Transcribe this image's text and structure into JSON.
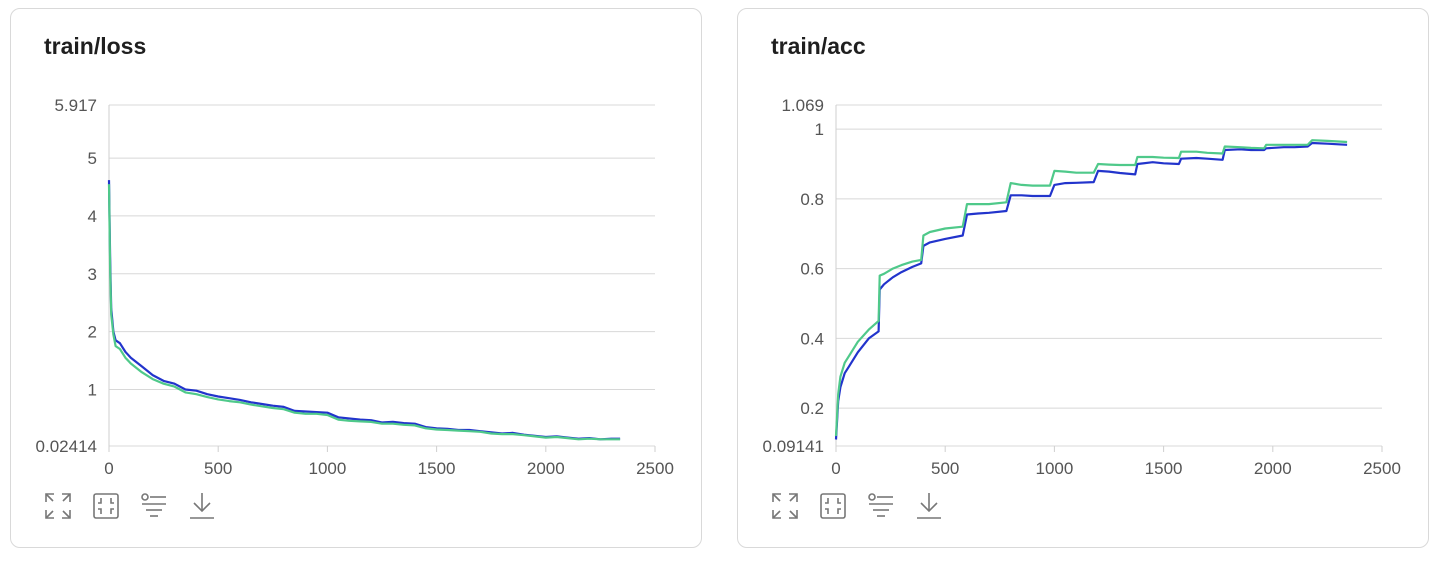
{
  "toolbar": {
    "icons": [
      "expand-icon",
      "fit-icon",
      "filter-icon",
      "download-icon"
    ]
  },
  "colors": {
    "series_blue": "#2234cc",
    "series_green": "#4fc98a",
    "grid": "#d8d8d8"
  },
  "chart_data": [
    {
      "type": "line",
      "title": "train/loss",
      "xlabel": "",
      "ylabel": "",
      "xlim": [
        0,
        2500
      ],
      "ylim": [
        0.02414,
        5.917
      ],
      "x_ticks": [
        0,
        500,
        1000,
        1500,
        2000,
        2500
      ],
      "y_ticks": [
        0.02414,
        1,
        2,
        3,
        4,
        5,
        5.917
      ],
      "y_tick_labels": [
        "0.02414",
        "1",
        "2",
        "3",
        "4",
        "5",
        "5.917"
      ],
      "grid": true,
      "series": [
        {
          "color": "#2234cc",
          "x": [
            0,
            5,
            10,
            20,
            30,
            50,
            75,
            100,
            150,
            200,
            250,
            300,
            350,
            400,
            450,
            500,
            550,
            600,
            650,
            700,
            750,
            800,
            850,
            900,
            950,
            1000,
            1050,
            1100,
            1150,
            1200,
            1250,
            1300,
            1350,
            1400,
            1450,
            1500,
            1550,
            1600,
            1650,
            1700,
            1750,
            1800,
            1850,
            1900,
            1950,
            2000,
            2050,
            2100,
            2150,
            2200,
            2250,
            2300,
            2340
          ],
          "y": [
            4.62,
            3.3,
            2.4,
            2.0,
            1.85,
            1.8,
            1.65,
            1.55,
            1.4,
            1.25,
            1.15,
            1.1,
            1.0,
            0.98,
            0.92,
            0.88,
            0.85,
            0.82,
            0.78,
            0.75,
            0.72,
            0.7,
            0.63,
            0.62,
            0.61,
            0.6,
            0.52,
            0.5,
            0.48,
            0.47,
            0.43,
            0.44,
            0.42,
            0.41,
            0.35,
            0.33,
            0.32,
            0.3,
            0.3,
            0.28,
            0.26,
            0.24,
            0.25,
            0.22,
            0.2,
            0.18,
            0.19,
            0.17,
            0.15,
            0.16,
            0.14,
            0.15,
            0.15
          ]
        },
        {
          "color": "#4fc98a",
          "x": [
            0,
            5,
            10,
            20,
            30,
            50,
            75,
            100,
            150,
            200,
            250,
            300,
            350,
            400,
            450,
            500,
            550,
            600,
            650,
            700,
            750,
            800,
            850,
            900,
            950,
            1000,
            1050,
            1100,
            1150,
            1200,
            1250,
            1300,
            1350,
            1400,
            1450,
            1500,
            1550,
            1600,
            1650,
            1700,
            1750,
            1800,
            1850,
            1900,
            1950,
            2000,
            2050,
            2100,
            2150,
            2200,
            2250,
            2300,
            2340
          ],
          "y": [
            4.55,
            3.1,
            2.3,
            1.95,
            1.75,
            1.7,
            1.55,
            1.45,
            1.3,
            1.18,
            1.1,
            1.05,
            0.95,
            0.92,
            0.87,
            0.83,
            0.8,
            0.78,
            0.74,
            0.71,
            0.68,
            0.66,
            0.6,
            0.58,
            0.58,
            0.56,
            0.48,
            0.46,
            0.45,
            0.44,
            0.41,
            0.41,
            0.39,
            0.38,
            0.33,
            0.31,
            0.3,
            0.29,
            0.28,
            0.27,
            0.24,
            0.23,
            0.23,
            0.21,
            0.19,
            0.17,
            0.18,
            0.16,
            0.14,
            0.15,
            0.14,
            0.14,
            0.14
          ]
        }
      ]
    },
    {
      "type": "line",
      "title": "train/acc",
      "xlabel": "",
      "ylabel": "",
      "xlim": [
        0,
        2500
      ],
      "ylim": [
        0.09141,
        1.069
      ],
      "x_ticks": [
        0,
        500,
        1000,
        1500,
        2000,
        2500
      ],
      "y_ticks": [
        0.09141,
        0.2,
        0.4,
        0.6,
        0.8,
        1,
        1.069
      ],
      "y_tick_labels": [
        "0.09141",
        "0.2",
        "0.4",
        "0.6",
        "0.8",
        "1",
        "1.069"
      ],
      "grid": true,
      "series": [
        {
          "color": "#2234cc",
          "x": [
            0,
            10,
            20,
            40,
            60,
            100,
            150,
            195,
            200,
            220,
            260,
            300,
            350,
            390,
            400,
            430,
            500,
            580,
            600,
            650,
            700,
            780,
            800,
            850,
            900,
            980,
            1000,
            1050,
            1100,
            1180,
            1200,
            1250,
            1300,
            1370,
            1380,
            1450,
            1500,
            1570,
            1580,
            1650,
            1700,
            1770,
            1780,
            1850,
            1900,
            1960,
            1970,
            2050,
            2100,
            2160,
            2180,
            2250,
            2340
          ],
          "y": [
            0.11,
            0.22,
            0.26,
            0.3,
            0.32,
            0.36,
            0.4,
            0.42,
            0.54,
            0.555,
            0.575,
            0.59,
            0.605,
            0.615,
            0.665,
            0.675,
            0.685,
            0.695,
            0.755,
            0.758,
            0.76,
            0.765,
            0.81,
            0.81,
            0.808,
            0.808,
            0.84,
            0.845,
            0.846,
            0.848,
            0.88,
            0.878,
            0.874,
            0.87,
            0.9,
            0.905,
            0.902,
            0.9,
            0.915,
            0.917,
            0.915,
            0.912,
            0.94,
            0.942,
            0.94,
            0.94,
            0.945,
            0.948,
            0.948,
            0.95,
            0.96,
            0.958,
            0.955
          ]
        },
        {
          "color": "#4fc98a",
          "x": [
            0,
            10,
            20,
            40,
            60,
            100,
            150,
            195,
            200,
            220,
            260,
            300,
            350,
            390,
            400,
            430,
            500,
            580,
            600,
            650,
            700,
            780,
            800,
            850,
            900,
            980,
            1000,
            1050,
            1100,
            1180,
            1200,
            1250,
            1300,
            1370,
            1380,
            1450,
            1500,
            1570,
            1580,
            1650,
            1700,
            1770,
            1780,
            1850,
            1900,
            1960,
            1970,
            2050,
            2100,
            2160,
            2180,
            2250,
            2340
          ],
          "y": [
            0.12,
            0.24,
            0.29,
            0.33,
            0.35,
            0.39,
            0.425,
            0.45,
            0.58,
            0.585,
            0.6,
            0.61,
            0.62,
            0.625,
            0.695,
            0.705,
            0.715,
            0.72,
            0.785,
            0.785,
            0.785,
            0.79,
            0.845,
            0.84,
            0.838,
            0.838,
            0.88,
            0.878,
            0.875,
            0.875,
            0.9,
            0.898,
            0.897,
            0.897,
            0.92,
            0.92,
            0.918,
            0.917,
            0.935,
            0.935,
            0.932,
            0.93,
            0.95,
            0.948,
            0.946,
            0.945,
            0.955,
            0.955,
            0.955,
            0.955,
            0.968,
            0.966,
            0.963
          ]
        }
      ]
    }
  ]
}
